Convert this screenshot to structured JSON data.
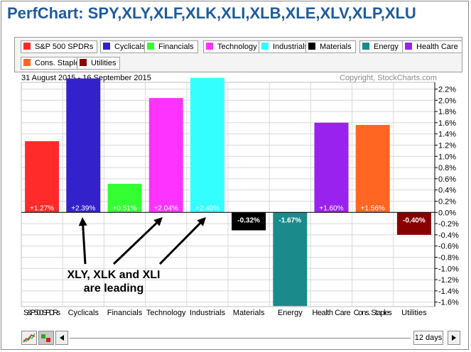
{
  "title": "PerfChart: SPY,XLY,XLF,XLK,XLI,XLB,XLE,XLV,XLP,XLU",
  "legend": [
    {
      "label": "S&P 500 SPDRs",
      "color": "#ff2a2a"
    },
    {
      "label": "Cyclicals",
      "color": "#3322cc"
    },
    {
      "label": "Financials",
      "color": "#33ff33"
    },
    {
      "label": "Technology",
      "color": "#ff33ff"
    },
    {
      "label": "Industrials",
      "color": "#33ffff"
    },
    {
      "label": "Materials",
      "color": "#000000"
    },
    {
      "label": "Energy",
      "color": "#1a8a8a"
    },
    {
      "label": "Health Care",
      "color": "#9922ee"
    },
    {
      "label": "Cons. Staples",
      "color": "#ff6622"
    },
    {
      "label": "Utilities",
      "color": "#880000"
    }
  ],
  "date_range": "31 August 2015 - 16 September 2015",
  "copyright": "Copyright, StockCharts.com",
  "annotation": {
    "line1": "XLY, XLK and XLI",
    "line2": "are leading"
  },
  "period": "12 days",
  "icons": {
    "line_chart": "line-chart-icon",
    "bar_chart": "bar-chart-icon",
    "scroll_left": "arrow-left-icon",
    "scroll_right": "arrow-right-icon"
  },
  "chart_data": {
    "type": "bar",
    "categories": [
      "S&P 500 SPDRs",
      "Cyclicals",
      "Financials",
      "Technology",
      "Industrials",
      "Materials",
      "Energy",
      "Health Care",
      "Cons. Staples",
      "Utilities"
    ],
    "x_tick_labels": [
      "S&P 500 SPDRs",
      "Cyclicals",
      "Financials",
      "Technology",
      "Industrials",
      "Materials",
      "Energy",
      "Health Care",
      "Cons. Staples",
      "Utilities"
    ],
    "values": [
      1.27,
      2.39,
      0.51,
      2.04,
      2.4,
      -0.32,
      -1.67,
      1.6,
      1.56,
      -0.4
    ],
    "data_labels": [
      "+1.27%",
      "+2.39%",
      "+0.51%",
      "+2.04%",
      "+2.40%",
      "-0.32%",
      "-1.67%",
      "+1.60%",
      "+1.56%",
      "-0.40%"
    ],
    "colors": [
      "#ff2a2a",
      "#3322cc",
      "#33ff33",
      "#ff33ff",
      "#33ffff",
      "#000000",
      "#1a8a8a",
      "#9922ee",
      "#ff6622",
      "#880000"
    ],
    "yticks": [
      2.2,
      2.0,
      1.8,
      1.6,
      1.4,
      1.2,
      1.0,
      0.8,
      0.6,
      0.4,
      0.2,
      0.0,
      -0.2,
      -0.4,
      -0.6,
      -0.8,
      -1.0,
      -1.2,
      -1.4,
      -1.6
    ],
    "ytick_labels": [
      "2.2%",
      "2.0%",
      "1.8%",
      "1.6%",
      "1.4%",
      "1.2%",
      "1.0%",
      "0.8%",
      "0.6%",
      "0.4%",
      "0.2%",
      "0.0%",
      "-0.2%",
      "-0.4%",
      "-0.6%",
      "-0.8%",
      "-1.0%",
      "-1.2%",
      "-1.4%",
      "-1.6%"
    ],
    "ylim": [
      -1.68,
      2.32
    ],
    "grid": true,
    "arrows_point_to": [
      "Cyclicals",
      "Technology",
      "Industrials"
    ]
  }
}
